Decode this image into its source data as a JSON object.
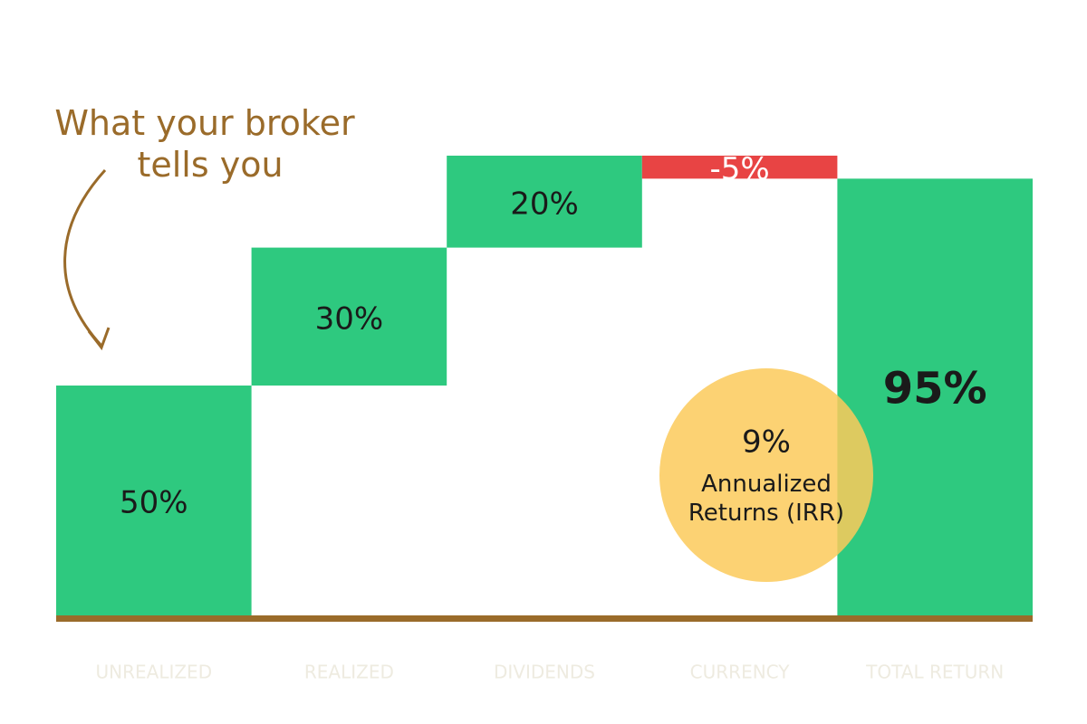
{
  "chart_data": {
    "type": "waterfall",
    "annotation": "What your broker tells you",
    "categories": [
      "UNREALIZED",
      "REALIZED",
      "DIVIDENDS",
      "CURRENCY",
      "TOTAL RETURN"
    ],
    "values": [
      50,
      30,
      20,
      -5,
      95
    ],
    "value_labels": [
      "50%",
      "30%",
      "20%",
      "-5%",
      "95%"
    ],
    "is_total": [
      false,
      false,
      false,
      false,
      true
    ],
    "colors": {
      "increase": "#2ec97f",
      "decrease": "#e84444",
      "total": "#2ec97f"
    },
    "irr": {
      "value": 9,
      "label": "9%",
      "text": "Annualized Returns (IRR)",
      "color": "#fcca5a"
    }
  }
}
